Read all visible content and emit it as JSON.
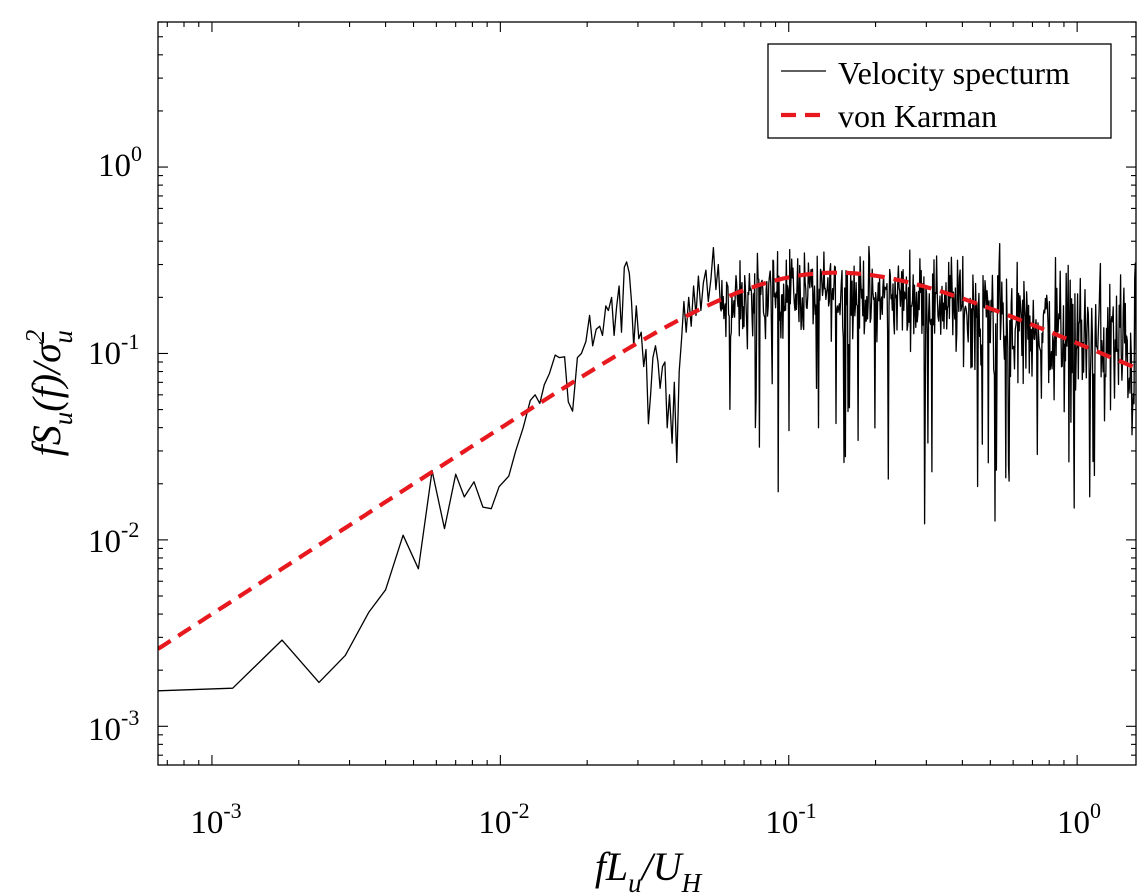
{
  "chart_data": {
    "type": "line",
    "title": "",
    "xlabel": {
      "base": "fL",
      "sub1": "u",
      "mid": "/U",
      "sub2": "H"
    },
    "ylabel": {
      "base": "fS",
      "sub1": "u",
      "mid": "(f)/σ",
      "sup": "2",
      "sub2": "u"
    },
    "xscale": "log",
    "yscale": "log",
    "xlim": [
      0.00065,
      1.6
    ],
    "ylim": [
      0.00062,
      6.0
    ],
    "grid": false,
    "legend_position": "top-right",
    "x_ticks": [
      {
        "value": 0.001,
        "base": "10",
        "exp": "-3"
      },
      {
        "value": 0.01,
        "base": "10",
        "exp": "-2"
      },
      {
        "value": 0.1,
        "base": "10",
        "exp": "-1"
      },
      {
        "value": 1,
        "base": "10",
        "exp": "0"
      }
    ],
    "y_ticks": [
      {
        "value": 0.001,
        "base": "10",
        "exp": "-3"
      },
      {
        "value": 0.01,
        "base": "10",
        "exp": "-2"
      },
      {
        "value": 0.1,
        "base": "10",
        "exp": "-1"
      },
      {
        "value": 1,
        "base": "10",
        "exp": "0"
      }
    ],
    "series": [
      {
        "name": "Velocity specturm",
        "color": "#000000",
        "style": "solid",
        "noisy_tail": {
          "x_start": 0.058,
          "x_end": 1.6,
          "n": 620,
          "seed": 12345
        },
        "points": [
          [
            0.00065,
            0.00155
          ],
          [
            0.00118,
            0.0016
          ],
          [
            0.00175,
            0.0029
          ],
          [
            0.00235,
            0.00172
          ],
          [
            0.0029,
            0.0024
          ],
          [
            0.0035,
            0.0041
          ],
          [
            0.004,
            0.0054
          ],
          [
            0.0046,
            0.0106
          ],
          [
            0.0052,
            0.007
          ],
          [
            0.0058,
            0.0235
          ],
          [
            0.0064,
            0.0115
          ],
          [
            0.007,
            0.0225
          ],
          [
            0.0075,
            0.017
          ],
          [
            0.0081,
            0.0205
          ],
          [
            0.0087,
            0.015
          ],
          [
            0.0093,
            0.0147
          ],
          [
            0.0099,
            0.0193
          ],
          [
            0.0107,
            0.022
          ],
          [
            0.0113,
            0.03
          ],
          [
            0.012,
            0.04
          ],
          [
            0.0127,
            0.056
          ],
          [
            0.0132,
            0.06
          ],
          [
            0.0137,
            0.054
          ],
          [
            0.0142,
            0.068
          ],
          [
            0.0148,
            0.078
          ],
          [
            0.0155,
            0.098
          ],
          [
            0.016,
            0.095
          ],
          [
            0.0167,
            0.096
          ],
          [
            0.0172,
            0.055
          ],
          [
            0.0178,
            0.049
          ],
          [
            0.0185,
            0.095
          ],
          [
            0.0191,
            0.1
          ],
          [
            0.0198,
            0.116
          ],
          [
            0.0204,
            0.16
          ],
          [
            0.0209,
            0.11
          ],
          [
            0.0215,
            0.135
          ],
          [
            0.0221,
            0.14
          ],
          [
            0.0226,
            0.125
          ],
          [
            0.0232,
            0.18
          ],
          [
            0.0237,
            0.17
          ],
          [
            0.0243,
            0.2
          ],
          [
            0.0248,
            0.125
          ],
          [
            0.0253,
            0.178
          ],
          [
            0.0258,
            0.23
          ],
          [
            0.0263,
            0.13
          ],
          [
            0.0269,
            0.29
          ],
          [
            0.0274,
            0.31
          ],
          [
            0.028,
            0.27
          ],
          [
            0.0285,
            0.19
          ],
          [
            0.029,
            0.11
          ],
          [
            0.0296,
            0.18
          ],
          [
            0.0302,
            0.12
          ],
          [
            0.0308,
            0.13
          ],
          [
            0.0314,
            0.085
          ],
          [
            0.032,
            0.105
          ],
          [
            0.0326,
            0.042
          ],
          [
            0.0332,
            0.06
          ],
          [
            0.0338,
            0.095
          ],
          [
            0.0345,
            0.11
          ],
          [
            0.0352,
            0.09
          ],
          [
            0.0358,
            0.065
          ],
          [
            0.0365,
            0.085
          ],
          [
            0.0372,
            0.09
          ],
          [
            0.0379,
            0.04
          ],
          [
            0.0386,
            0.06
          ],
          [
            0.0394,
            0.033
          ],
          [
            0.0401,
            0.07
          ],
          [
            0.0409,
            0.026
          ],
          [
            0.0417,
            0.08
          ],
          [
            0.0425,
            0.12
          ],
          [
            0.0433,
            0.19
          ],
          [
            0.0441,
            0.13
          ],
          [
            0.045,
            0.2
          ],
          [
            0.0459,
            0.14
          ],
          [
            0.0468,
            0.23
          ],
          [
            0.0477,
            0.16
          ],
          [
            0.0486,
            0.26
          ],
          [
            0.0496,
            0.17
          ],
          [
            0.0506,
            0.24
          ],
          [
            0.0516,
            0.28
          ],
          [
            0.0526,
            0.19
          ],
          [
            0.0537,
            0.25
          ],
          [
            0.0548,
            0.37
          ],
          [
            0.0559,
            0.22
          ],
          [
            0.057,
            0.3
          ]
        ]
      },
      {
        "name": "von Karman",
        "color": "#e8191e",
        "style": "dashed",
        "model": {
          "type": "von-karman",
          "a": 70.8,
          "scale": 4.0
        }
      }
    ]
  }
}
